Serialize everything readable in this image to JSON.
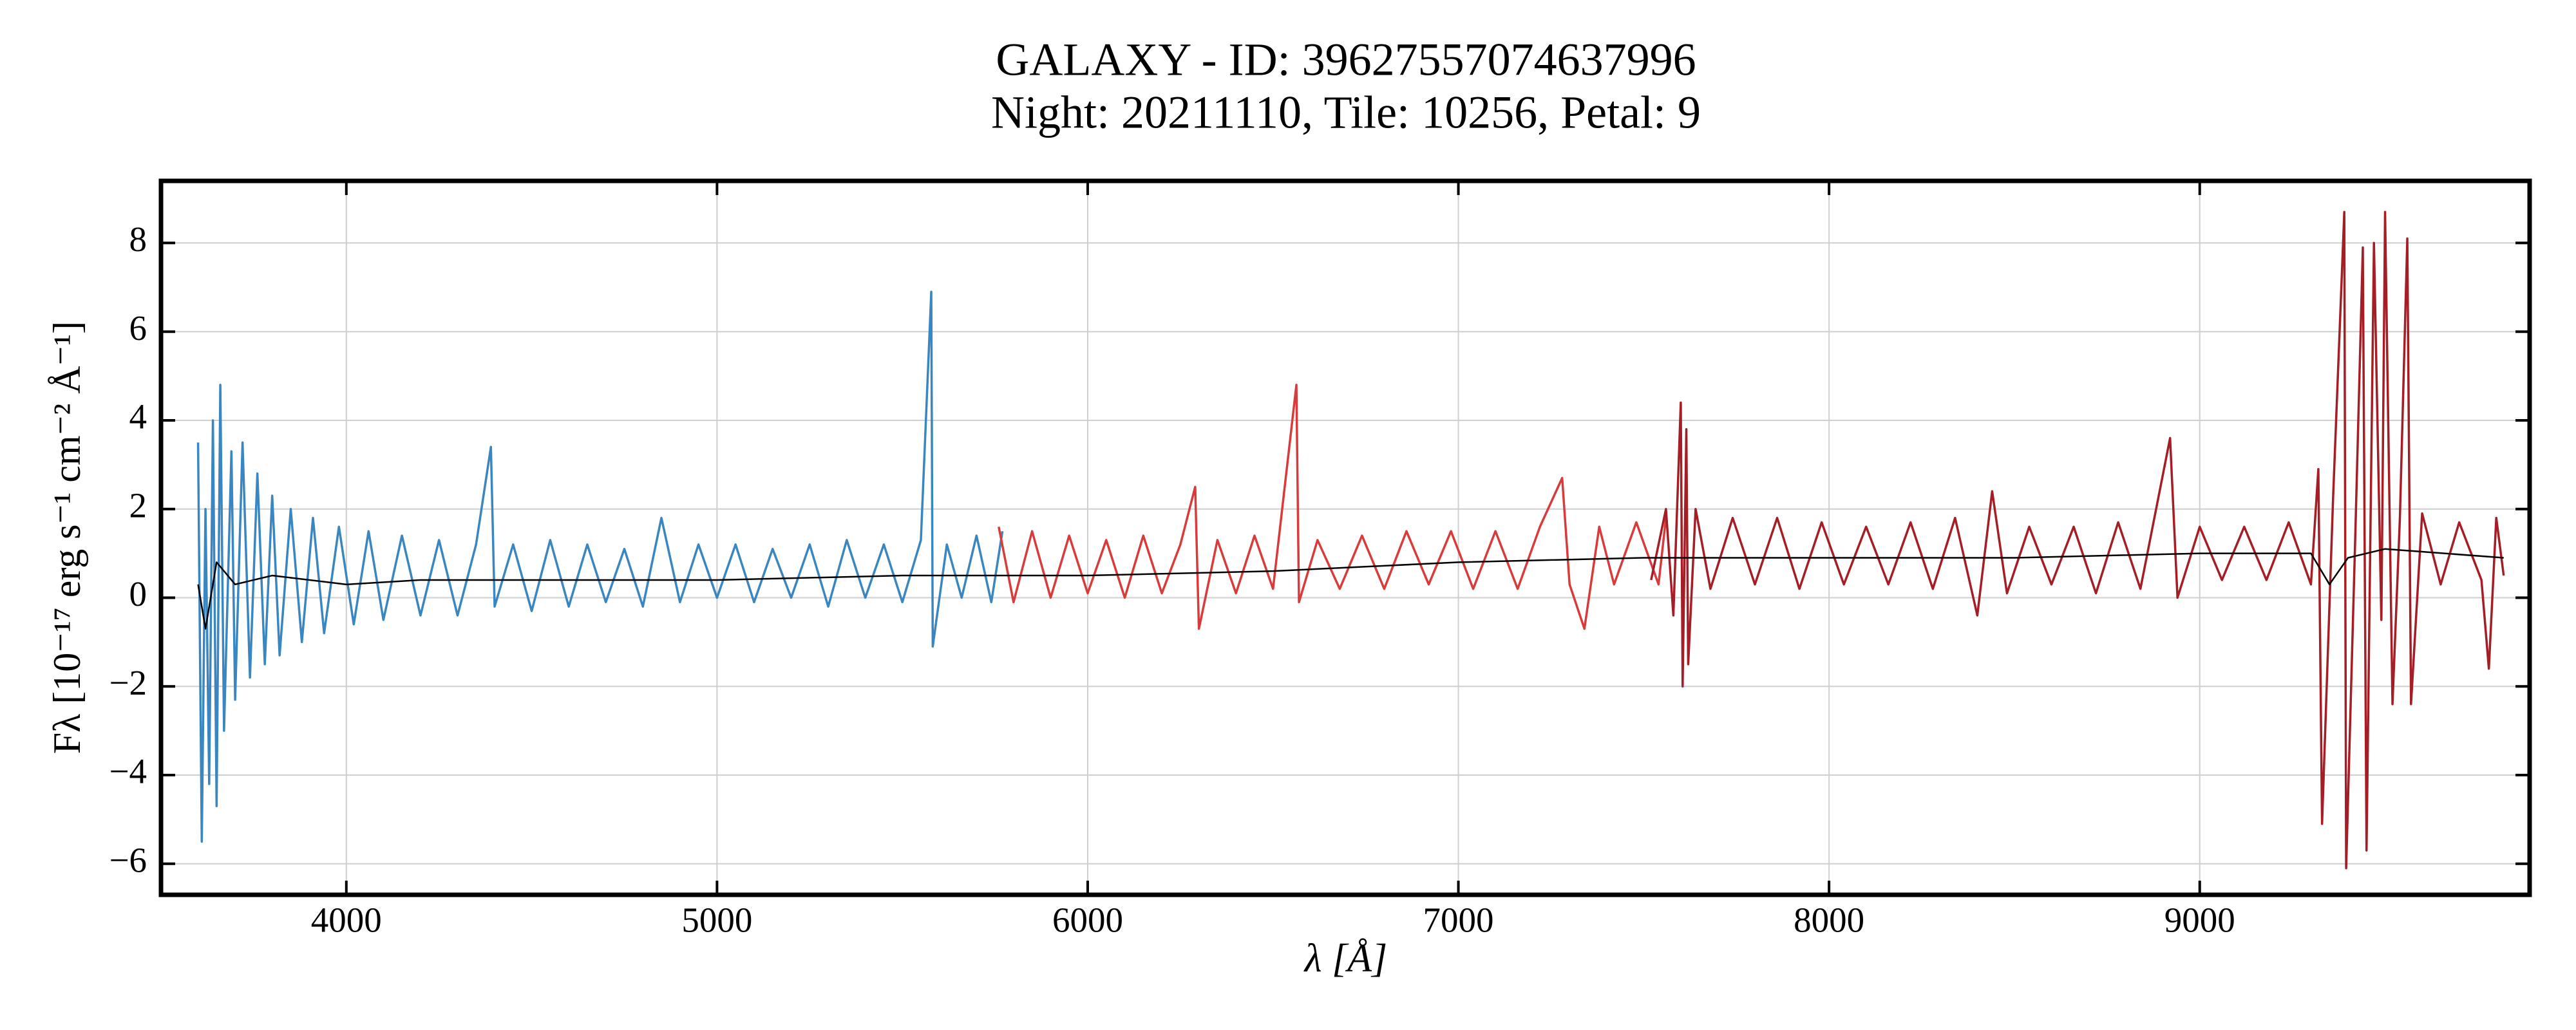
{
  "chart_data": {
    "type": "line",
    "title": "GALAXY - ID: 39627557074637996",
    "subtitle": "Night: 20211110, Tile: 10256, Petal: 9",
    "x_label": "λ [Å]",
    "y_label": "Fλ [10⁻¹⁷ erg s⁻¹ cm⁻² Å⁻¹]",
    "xlim": [
      3500,
      9890
    ],
    "ylim": [
      -6.7,
      9.4
    ],
    "xticks": [
      4000,
      5000,
      6000,
      7000,
      8000,
      9000
    ],
    "yticks": [
      {
        "value": -6,
        "label": "−6"
      },
      {
        "value": -4,
        "label": "−4"
      },
      {
        "value": -2,
        "label": "−2"
      },
      0,
      2,
      4,
      6,
      8
    ],
    "grid": true,
    "series": [
      {
        "color": "#3a86c0",
        "x": [
          3600,
          3610,
          3620,
          3630,
          3640,
          3650,
          3660,
          3670,
          3690,
          3700,
          3720,
          3740,
          3760,
          3780,
          3800,
          3820,
          3850,
          3880,
          3910,
          3940,
          3980,
          4020,
          4060,
          4100,
          4150,
          4200,
          4250,
          4300,
          4350,
          4390,
          4400,
          4450,
          4500,
          4550,
          4600,
          4650,
          4700,
          4750,
          4800,
          4850,
          4900,
          4950,
          5000,
          5050,
          5100,
          5150,
          5200,
          5250,
          5300,
          5350,
          5400,
          5450,
          5500,
          5550,
          5578,
          5582,
          5620,
          5660,
          5700,
          5740,
          5770
        ],
        "values": [
          3.5,
          -5.5,
          2.0,
          -4.2,
          4.0,
          -4.7,
          4.8,
          -3.0,
          3.3,
          -2.3,
          3.5,
          -1.8,
          2.8,
          -1.5,
          2.3,
          -1.3,
          2.0,
          -1.0,
          1.8,
          -0.8,
          1.6,
          -0.6,
          1.5,
          -0.5,
          1.4,
          -0.4,
          1.3,
          -0.4,
          1.2,
          3.4,
          -0.2,
          1.2,
          -0.3,
          1.3,
          -0.2,
          1.2,
          -0.1,
          1.1,
          -0.2,
          1.8,
          -0.1,
          1.2,
          0.0,
          1.2,
          -0.1,
          1.1,
          0.0,
          1.2,
          -0.2,
          1.3,
          0.0,
          1.2,
          -0.1,
          1.3,
          6.9,
          -1.1,
          1.2,
          0.0,
          1.4,
          -0.1,
          1.5
        ]
      },
      {
        "color": "#d93a3a",
        "x": [
          5760,
          5800,
          5850,
          5900,
          5950,
          6000,
          6050,
          6100,
          6150,
          6200,
          6250,
          6290,
          6300,
          6350,
          6400,
          6450,
          6500,
          6563,
          6570,
          6620,
          6680,
          6740,
          6800,
          6860,
          6920,
          6980,
          7040,
          7100,
          7160,
          7220,
          7280,
          7300,
          7340,
          7380,
          7420,
          7480,
          7540,
          7560
        ],
        "values": [
          1.6,
          -0.1,
          1.5,
          0.0,
          1.4,
          0.1,
          1.3,
          0.0,
          1.4,
          0.1,
          1.2,
          2.5,
          -0.7,
          1.3,
          0.1,
          1.4,
          0.2,
          4.8,
          -0.1,
          1.3,
          0.2,
          1.4,
          0.2,
          1.5,
          0.3,
          1.5,
          0.2,
          1.5,
          0.2,
          1.6,
          2.7,
          0.3,
          -0.7,
          1.6,
          0.3,
          1.7,
          0.3,
          1.8
        ]
      },
      {
        "color": "#a51e26",
        "x": [
          7520,
          7560,
          7580,
          7600,
          7605,
          7615,
          7620,
          7640,
          7680,
          7740,
          7800,
          7860,
          7920,
          7980,
          8040,
          8100,
          8160,
          8220,
          8280,
          8340,
          8400,
          8440,
          8480,
          8540,
          8600,
          8660,
          8720,
          8780,
          8840,
          8920,
          8940,
          9000,
          9060,
          9120,
          9180,
          9240,
          9300,
          9320,
          9330,
          9360,
          9390,
          9395,
          9420,
          9440,
          9450,
          9470,
          9490,
          9500,
          9520,
          9540,
          9560,
          9570,
          9600,
          9650,
          9700,
          9760,
          9780,
          9800,
          9820
        ],
        "values": [
          0.4,
          2.0,
          -0.4,
          4.4,
          -2.0,
          3.8,
          -1.5,
          2.0,
          0.2,
          1.8,
          0.3,
          1.8,
          0.2,
          1.7,
          0.3,
          1.6,
          0.3,
          1.7,
          0.2,
          1.8,
          -0.4,
          2.4,
          0.1,
          1.6,
          0.3,
          1.6,
          0.1,
          1.7,
          0.2,
          3.6,
          0.0,
          1.6,
          0.4,
          1.6,
          0.4,
          1.7,
          0.3,
          2.9,
          -5.1,
          2.3,
          8.7,
          -6.1,
          1.5,
          7.9,
          -5.7,
          8.0,
          -0.5,
          8.7,
          -2.4,
          1.8,
          8.1,
          -2.4,
          1.9,
          0.3,
          1.7,
          0.4,
          -1.6,
          1.8,
          0.5
        ]
      },
      {
        "color": "#000000",
        "x": [
          3600,
          3620,
          3650,
          3700,
          3800,
          4000,
          4200,
          4500,
          5000,
          5500,
          5760,
          6000,
          6500,
          7000,
          7500,
          8000,
          8500,
          9000,
          9300,
          9350,
          9400,
          9500,
          9820
        ],
        "values": [
          0.3,
          -0.7,
          0.8,
          0.3,
          0.5,
          0.3,
          0.4,
          0.4,
          0.4,
          0.5,
          0.5,
          0.5,
          0.6,
          0.8,
          0.9,
          0.9,
          0.9,
          1.0,
          1.0,
          0.3,
          0.9,
          1.1,
          0.9
        ]
      }
    ]
  }
}
